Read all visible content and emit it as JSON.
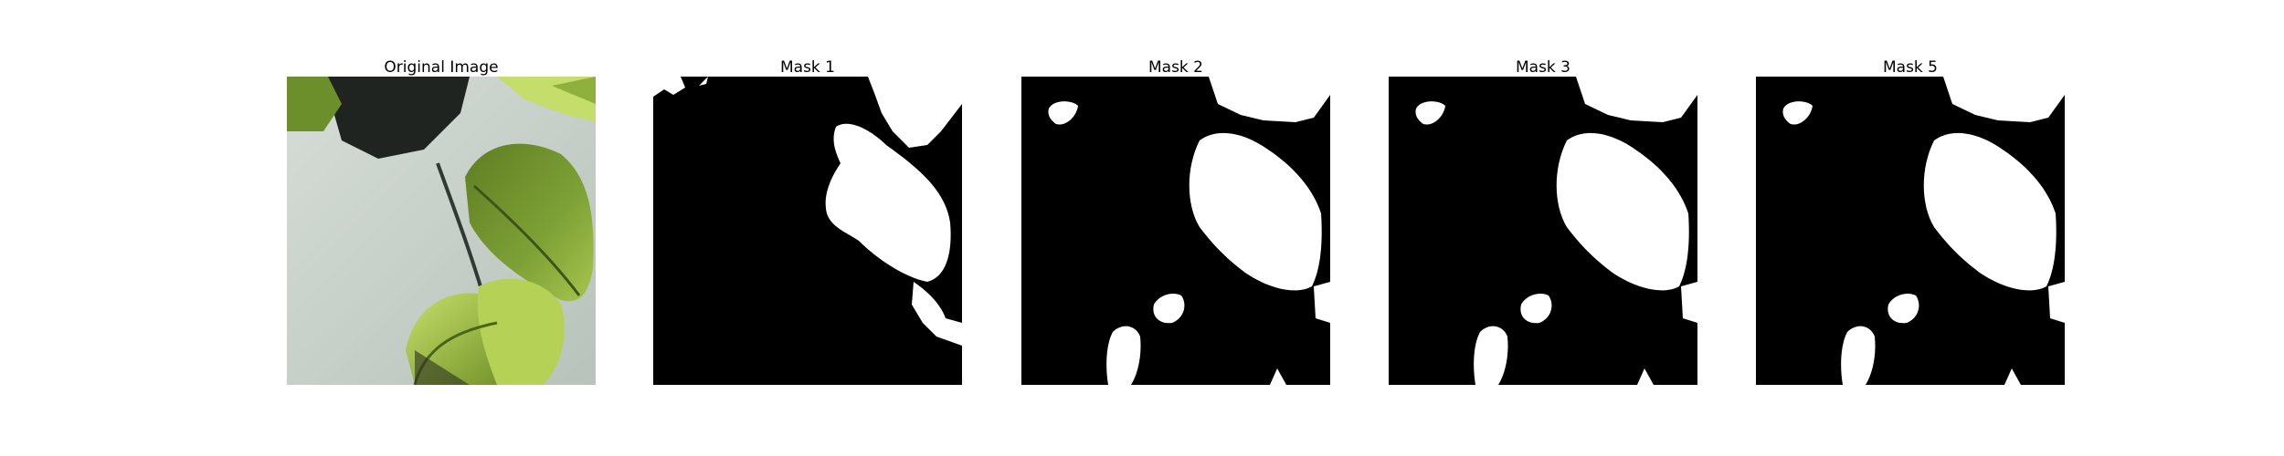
{
  "panels": [
    {
      "title": "Original Image",
      "kind": "photo"
    },
    {
      "title": "Mask 1",
      "kind": "mask-a"
    },
    {
      "title": "Mask 2",
      "kind": "mask-b"
    },
    {
      "title": "Mask 3",
      "kind": "mask-b"
    },
    {
      "title": "Mask 5",
      "kind": "mask-b"
    }
  ],
  "colors": {
    "mask_background": "#000000",
    "mask_foreground": "#ffffff",
    "pot": "#c9d3cc",
    "leaf": "#6f8f2a",
    "leaf_light": "#b9d65a",
    "shadow": "#2a2a22"
  }
}
